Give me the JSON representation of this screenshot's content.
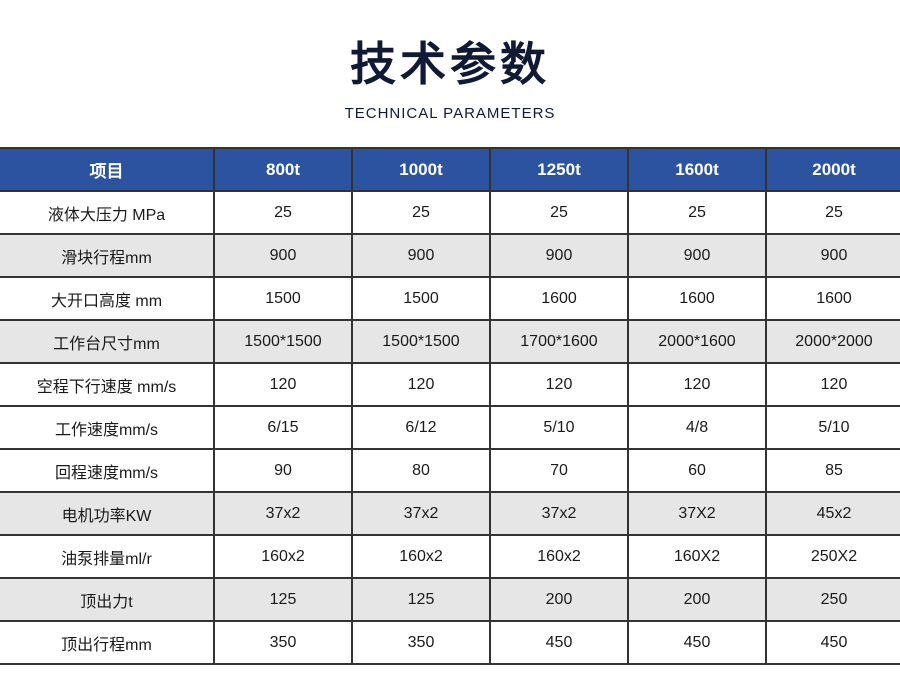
{
  "header": {
    "title": "技术参数",
    "subtitle": "TECHNICAL PARAMETERS"
  },
  "colors": {
    "header_bg": "#2c53a0",
    "stripe": "#e6e6e6",
    "title": "#111a35"
  },
  "table": {
    "columns": [
      "项目",
      "800t",
      "1000t",
      "1250t",
      "1600t",
      "2000t"
    ],
    "rows": [
      {
        "cells": [
          "液体大压力 MPa",
          "25",
          "25",
          "25",
          "25",
          "25"
        ],
        "shaded": false
      },
      {
        "cells": [
          "滑块行程mm",
          "900",
          "900",
          "900",
          "900",
          "900"
        ],
        "shaded": true
      },
      {
        "cells": [
          "大开口高度 mm",
          "1500",
          "1500",
          "1600",
          "1600",
          "1600"
        ],
        "shaded": false
      },
      {
        "cells": [
          "工作台尺寸mm",
          "1500*1500",
          "1500*1500",
          "1700*1600",
          "2000*1600",
          "2000*2000"
        ],
        "shaded": true
      },
      {
        "cells": [
          "空程下行速度 mm/s",
          "120",
          "120",
          "120",
          "120",
          "120"
        ],
        "shaded": false
      },
      {
        "cells": [
          "工作速度mm/s",
          "6/15",
          "6/12",
          "5/10",
          "4/8",
          "5/10"
        ],
        "shaded": false
      },
      {
        "cells": [
          "回程速度mm/s",
          "90",
          "80",
          "70",
          "60",
          "85"
        ],
        "shaded": false
      },
      {
        "cells": [
          "电机功率KW",
          "37x2",
          "37x2",
          "37x2",
          "37X2",
          "45x2"
        ],
        "shaded": true
      },
      {
        "cells": [
          "油泵排量ml/r",
          "160x2",
          "160x2",
          "160x2",
          "160X2",
          "250X2"
        ],
        "shaded": false
      },
      {
        "cells": [
          "顶出力t",
          "125",
          "125",
          "200",
          "200",
          "250"
        ],
        "shaded": true
      },
      {
        "cells": [
          "顶出行程mm",
          "350",
          "350",
          "450",
          "450",
          "450"
        ],
        "shaded": false
      }
    ]
  }
}
